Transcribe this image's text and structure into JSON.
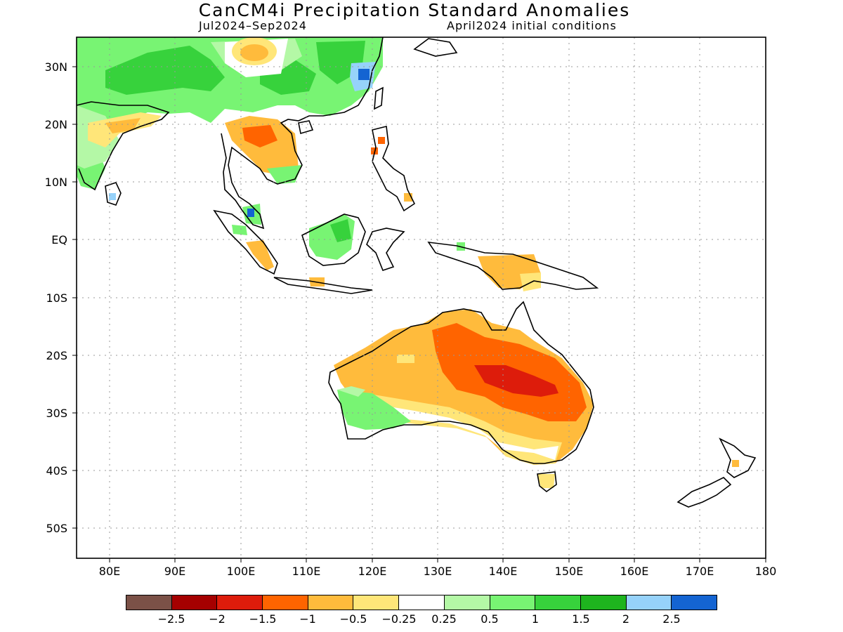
{
  "header": {
    "title": "CanCM4i Precipitation Standard Anomalies",
    "period": "Jul2024–Sep2024",
    "initial_conditions": "April2024 initial conditions"
  },
  "map": {
    "lat_labels": [
      "30N",
      "20N",
      "10N",
      "EQ",
      "10S",
      "20S",
      "30S",
      "40S",
      "50S"
    ],
    "lon_labels": [
      "80E",
      "90E",
      "100E",
      "110E",
      "120E",
      "130E",
      "140E",
      "150E",
      "160E",
      "170E",
      "180"
    ],
    "extent": {
      "lon_min": 75,
      "lon_max": 180,
      "lat_min": -55,
      "lat_max": 35
    }
  },
  "legend": {
    "colors": [
      "#7b5147",
      "#a50000",
      "#dd1c0b",
      "#ff6400",
      "#ffbb3c",
      "#ffe679",
      "#ffffff",
      "#b4f8a6",
      "#78f473",
      "#37d23c",
      "#1eb41e",
      "#96d2fa",
      "#1464d2"
    ],
    "labels": [
      "−2.5",
      "−2",
      "−1.5",
      "−1",
      "−0.5",
      "−0.25",
      "0.25",
      "0.5",
      "1",
      "1.5",
      "2",
      "2.5"
    ]
  }
}
